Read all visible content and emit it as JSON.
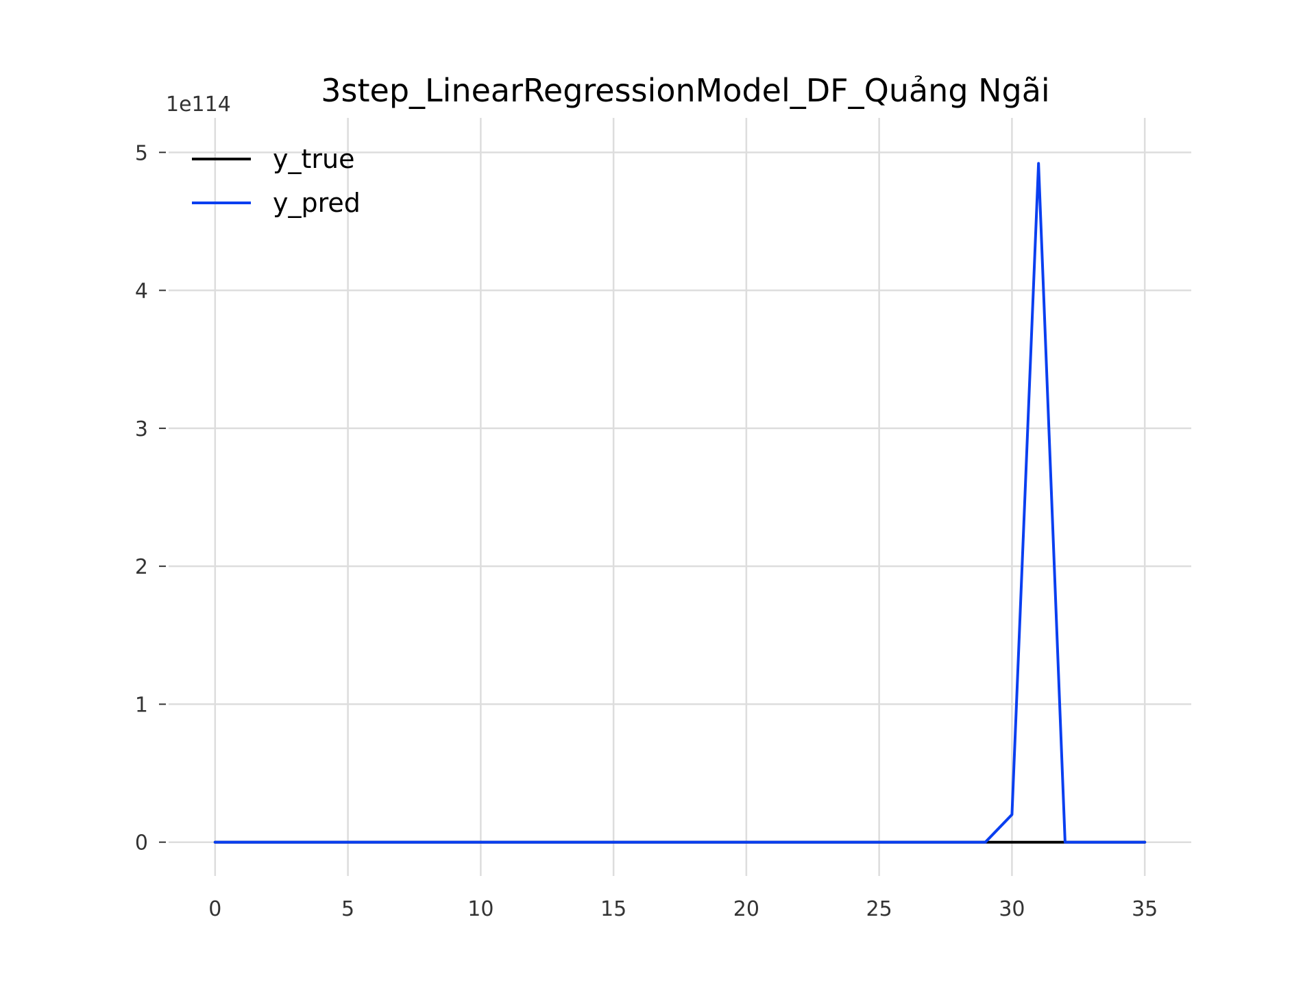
{
  "chart_data": {
    "type": "line",
    "title": "3step_LinearRegressionModel_DF_Quảng Ngãi",
    "xlabel": "",
    "ylabel": "",
    "y_offset_label": "1e114",
    "xlim": [
      -1.75,
      36.75
    ],
    "ylim": [
      -0.245,
      5.25
    ],
    "x_ticks": [
      0,
      5,
      10,
      15,
      20,
      25,
      30,
      35
    ],
    "x_tick_labels": [
      "0",
      "5",
      "10",
      "15",
      "20",
      "25",
      "30",
      "35"
    ],
    "y_ticks": [
      0,
      1,
      2,
      3,
      4,
      5
    ],
    "y_tick_labels": [
      "0",
      "1",
      "2",
      "3",
      "4",
      "5"
    ],
    "grid": true,
    "legend_position": "top-left",
    "x": [
      0,
      1,
      2,
      3,
      4,
      5,
      6,
      7,
      8,
      9,
      10,
      11,
      12,
      13,
      14,
      15,
      16,
      17,
      18,
      19,
      20,
      21,
      22,
      23,
      24,
      25,
      26,
      27,
      28,
      29,
      30,
      31,
      32,
      33,
      34,
      35
    ],
    "series": [
      {
        "name": "y_true",
        "color": "#000000",
        "values": [
          0,
          0,
          0,
          0,
          0,
          0,
          0,
          0,
          0,
          0,
          0,
          0,
          0,
          0,
          0,
          0,
          0,
          0,
          0,
          0,
          0,
          0,
          0,
          0,
          0,
          0,
          0,
          0,
          0,
          0,
          0,
          0,
          0,
          0,
          0,
          0
        ]
      },
      {
        "name": "y_pred",
        "color": "#0a3ff0",
        "values": [
          0,
          0,
          0,
          0,
          0,
          0,
          0,
          0,
          0,
          0,
          0,
          0,
          0,
          0,
          0,
          0,
          0,
          0,
          0,
          0,
          0,
          0,
          0,
          0,
          0,
          0,
          0,
          0,
          0,
          0,
          0.2,
          4.92,
          0,
          0,
          0,
          0
        ]
      }
    ]
  }
}
